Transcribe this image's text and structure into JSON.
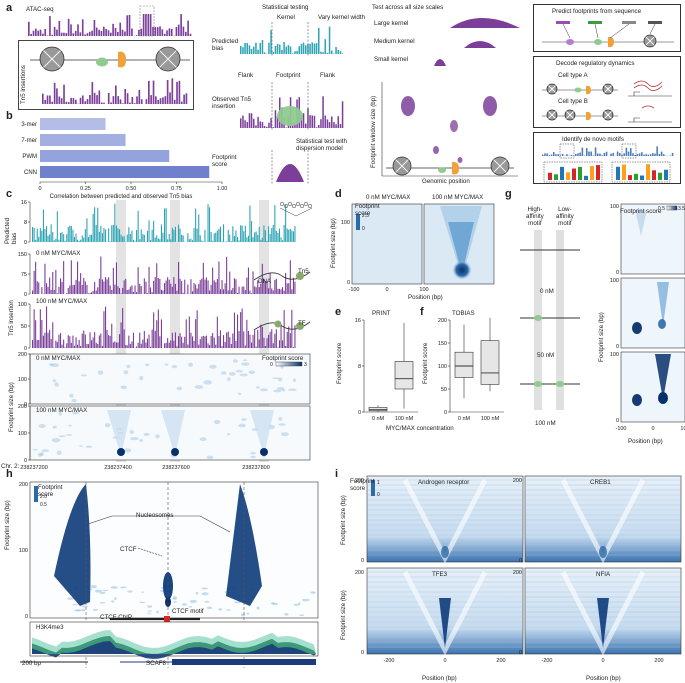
{
  "panel_letters": {
    "a": "a",
    "b": "b",
    "c": "c",
    "d": "d",
    "e": "e",
    "f": "f",
    "g": "g",
    "h": "h",
    "i": "i"
  },
  "panel_a": {
    "atac_label": "ATAC-seq",
    "tn5_label": "Tn5\ninsertions",
    "statistical_testing": "Statistical testing",
    "kernel": "Kernel",
    "vary_kernel_width": "Vary kernel width",
    "predicted_bias": "Predicted\nbias",
    "flank_left": "Flank",
    "footprint": "Footprint",
    "flank_right": "Flank",
    "observed_tn5": "Observed Tn5\ninsertion",
    "stat_test": "Statistical test with\ndispersion model",
    "footprint_score": "Footprint\nscore",
    "test_all_scales": "Test across all size scales",
    "large_kernel": "Large kernel",
    "medium_kernel": "Medium kernel",
    "small_kernel": "Small kernel",
    "footprint_window_size": "Footprint window size (bp)",
    "genomic_position": "Genomic position",
    "predict_footprints": "Predict footprints from sequence",
    "decode_dynamics": "Decode regulatory dynamics",
    "cell_type_a": "Cell type A",
    "cell_type_b": "Cell type B",
    "identify_motifs": "Identify de novo motifs"
  },
  "panel_b": {
    "xlabel": "Correlation between predicted and observed Tn5 bias",
    "chart_data": {
      "type": "bar",
      "orientation": "horizontal",
      "categories": [
        "3-mer",
        "7-mer",
        "PWM",
        "CNN"
      ],
      "values": [
        0.36,
        0.47,
        0.71,
        0.93
      ],
      "xlim": [
        0,
        1
      ],
      "xticks": [
        "0",
        "0.25",
        "0.50",
        "0.75",
        "1.00"
      ],
      "colors": [
        "#b3bde6",
        "#a3afe0",
        "#95a3dc",
        "#6f80cc"
      ]
    }
  },
  "panel_c": {
    "predicted_bias": "Predicted\nbias",
    "tn5_insertion": "Tn5 insertion",
    "footprint_size": "Footprint size (bp)",
    "track_0nm": "0 nM MYC/MAX",
    "track_100nm": "100 nM MYC/MAX",
    "heat_0nm": "0 nM MYC/MAX",
    "heat_100nm": "100 nM MYC/MAX",
    "footprint_score": "Footprint score",
    "cb_min": "0",
    "cb_max": "3",
    "y_bias": [
      "0",
      "8",
      "16"
    ],
    "y_ins": [
      "0",
      "75",
      "150"
    ],
    "y_ins2": [
      "0",
      "50",
      "100"
    ],
    "y_fp": [
      "0",
      "100",
      "200"
    ],
    "y_fp2": [
      "0",
      "100",
      "200"
    ],
    "dna": "DNA",
    "tn5": "Tn5",
    "tf": "TF",
    "chr_label": "Chr. 2:",
    "x_ticks": [
      "238237200",
      "238237400",
      "238237600",
      "238237800"
    ]
  },
  "panel_d": {
    "title_0nm": "0 nM MYC/MAX",
    "title_100nm": "100 nM MYC/MAX",
    "footprint_score": "Footprint\nscore",
    "cb_val": "2.5",
    "cb_min": "0",
    "ylabel": "Footprint size (bp)",
    "xlabel": "Position (bp)",
    "y_ticks": [
      "0",
      "100"
    ],
    "x_ticks": [
      "-100",
      "0",
      "100"
    ]
  },
  "panel_e": {
    "title": "PRINT",
    "ylabel": "Footprint score",
    "y_ticks": [
      "0",
      "8",
      "16"
    ],
    "categories": [
      "0 nM",
      "100 nM"
    ],
    "chart_data": {
      "type": "box",
      "categories": [
        "0 nM",
        "100 nM"
      ],
      "ylim": [
        0,
        16
      ],
      "boxes": [
        {
          "min": 0,
          "q1": 0.2,
          "median": 0.4,
          "q3": 0.8,
          "max": 1.2
        },
        {
          "min": 0.6,
          "q1": 4.0,
          "median": 5.8,
          "q3": 8.8,
          "max": 15.5
        }
      ]
    }
  },
  "panel_f": {
    "title": "TOBIAS",
    "ylabel": "Footprint score",
    "y_ticks": [
      "0",
      "50",
      "100",
      "150",
      "200"
    ],
    "categories": [
      "0 nM",
      "100 nM"
    ],
    "xlabel_shared": "MYC/MAX concentration",
    "chart_data": {
      "type": "box",
      "categories": [
        "0 nM",
        "100 nM"
      ],
      "ylim": [
        0,
        200
      ],
      "boxes": [
        {
          "min": 30,
          "q1": 75,
          "median": 100,
          "q3": 130,
          "max": 190
        },
        {
          "min": 45,
          "q1": 60,
          "median": 85,
          "q3": 155,
          "max": 205
        }
      ]
    }
  },
  "panel_g": {
    "high_affinity": "High-\naffinity\nmotif",
    "low_affinity": "Low-\naffinity\nmotif",
    "conc_0": "0 nM",
    "conc_50": "50 nM",
    "conc_100": "100 nM",
    "footprint_score": "Footprint score",
    "cb_min": "0.5",
    "cb_max": "3.5",
    "ylabel": "Footprint size (bp)",
    "xlabel": "Position (bp)",
    "y_ticks": [
      "0",
      "100"
    ],
    "x_ticks": [
      "-100",
      "0",
      "100"
    ]
  },
  "panel_h": {
    "footprint_score": "Footprint\nscore",
    "cb_max": "2.0",
    "cb_min": "0.5",
    "ylabel": "Footprint size (bp)",
    "y_ticks": [
      "0",
      "100",
      "200"
    ],
    "nucleosomes": "Nucleosomes",
    "ctcf": "CTCF",
    "ctcf_chip": "CTCF ChIP",
    "ctcf_motif": "CTCF motif",
    "h3k4me3": "H3K4me3",
    "scale": "200 bp",
    "gene": "SCAF8"
  },
  "panel_i": {
    "footprint_score": "Footprint\nscore",
    "cb_max": "1",
    "cb_min": "0",
    "ylabel": "Footprint size (bp)",
    "xlabel": "Position (bp)",
    "titles": [
      "Androgen receptor",
      "CREB1",
      "TFE3",
      "NFIA"
    ],
    "y_ticks": [
      "0",
      "200"
    ],
    "x_ticks": [
      "-200",
      "0",
      "200"
    ]
  },
  "colors": {
    "teal": "#2fa4b5",
    "purple": "#7b3f99",
    "blue_dark": "#0d2f6e",
    "green_node": "#8fca8f",
    "orange_node": "#f0a23a",
    "gray_band": "#d9d9d9"
  }
}
